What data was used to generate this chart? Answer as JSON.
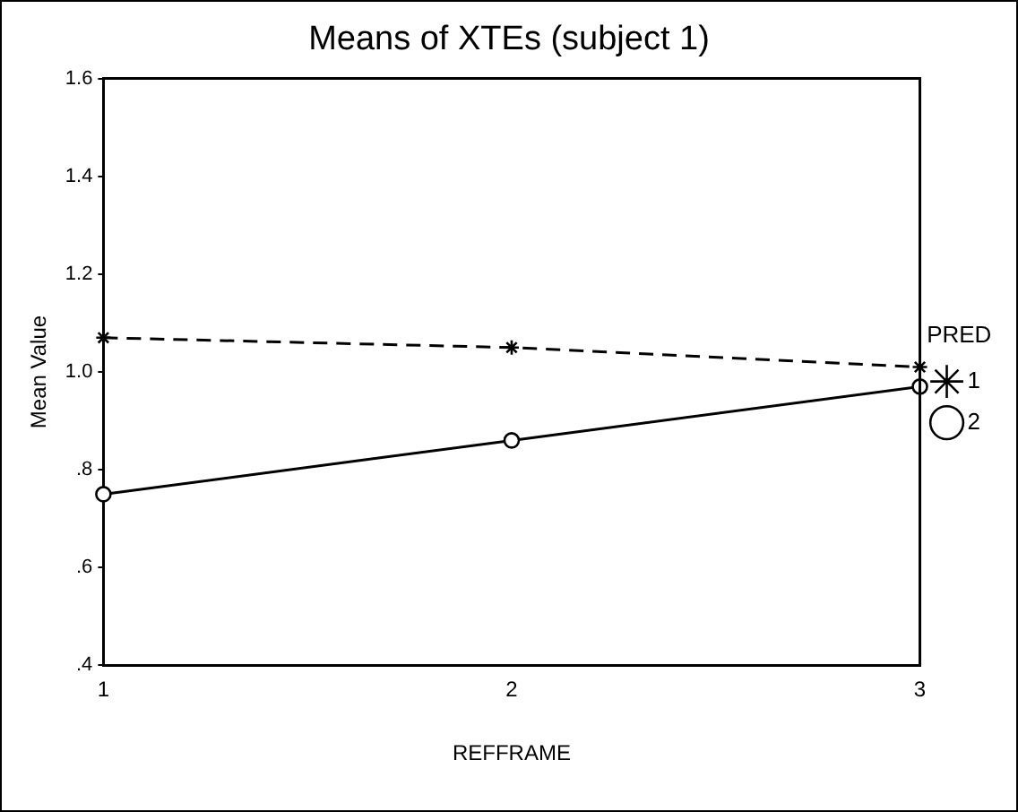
{
  "chart_data": {
    "type": "line",
    "title": "Means of XTEs (subject 1)",
    "xlabel": "REFFRAME",
    "ylabel": "Mean Value",
    "legend_title": "PRED",
    "legend": "right",
    "x": [
      1,
      2,
      3
    ],
    "xlim": [
      1,
      3
    ],
    "xticks": [
      1,
      2,
      3
    ],
    "ylim": [
      0.4,
      1.6
    ],
    "yticks": [
      {
        "value": 0.4,
        "label": ".4"
      },
      {
        "value": 0.6,
        "label": ".6"
      },
      {
        "value": 0.8,
        "label": ".8"
      },
      {
        "value": 1.0,
        "label": "1.0"
      },
      1.2,
      1.4,
      1.6
    ],
    "grid": false,
    "series": [
      {
        "name": "1",
        "color": "#000000",
        "values": [
          1.07,
          1.05,
          1.01
        ],
        "line_style": "dashed",
        "marker": "cross"
      },
      {
        "name": "2",
        "color": "#000000",
        "values": [
          0.75,
          0.86,
          0.97
        ],
        "line_style": "solid",
        "marker": "circle"
      }
    ]
  }
}
